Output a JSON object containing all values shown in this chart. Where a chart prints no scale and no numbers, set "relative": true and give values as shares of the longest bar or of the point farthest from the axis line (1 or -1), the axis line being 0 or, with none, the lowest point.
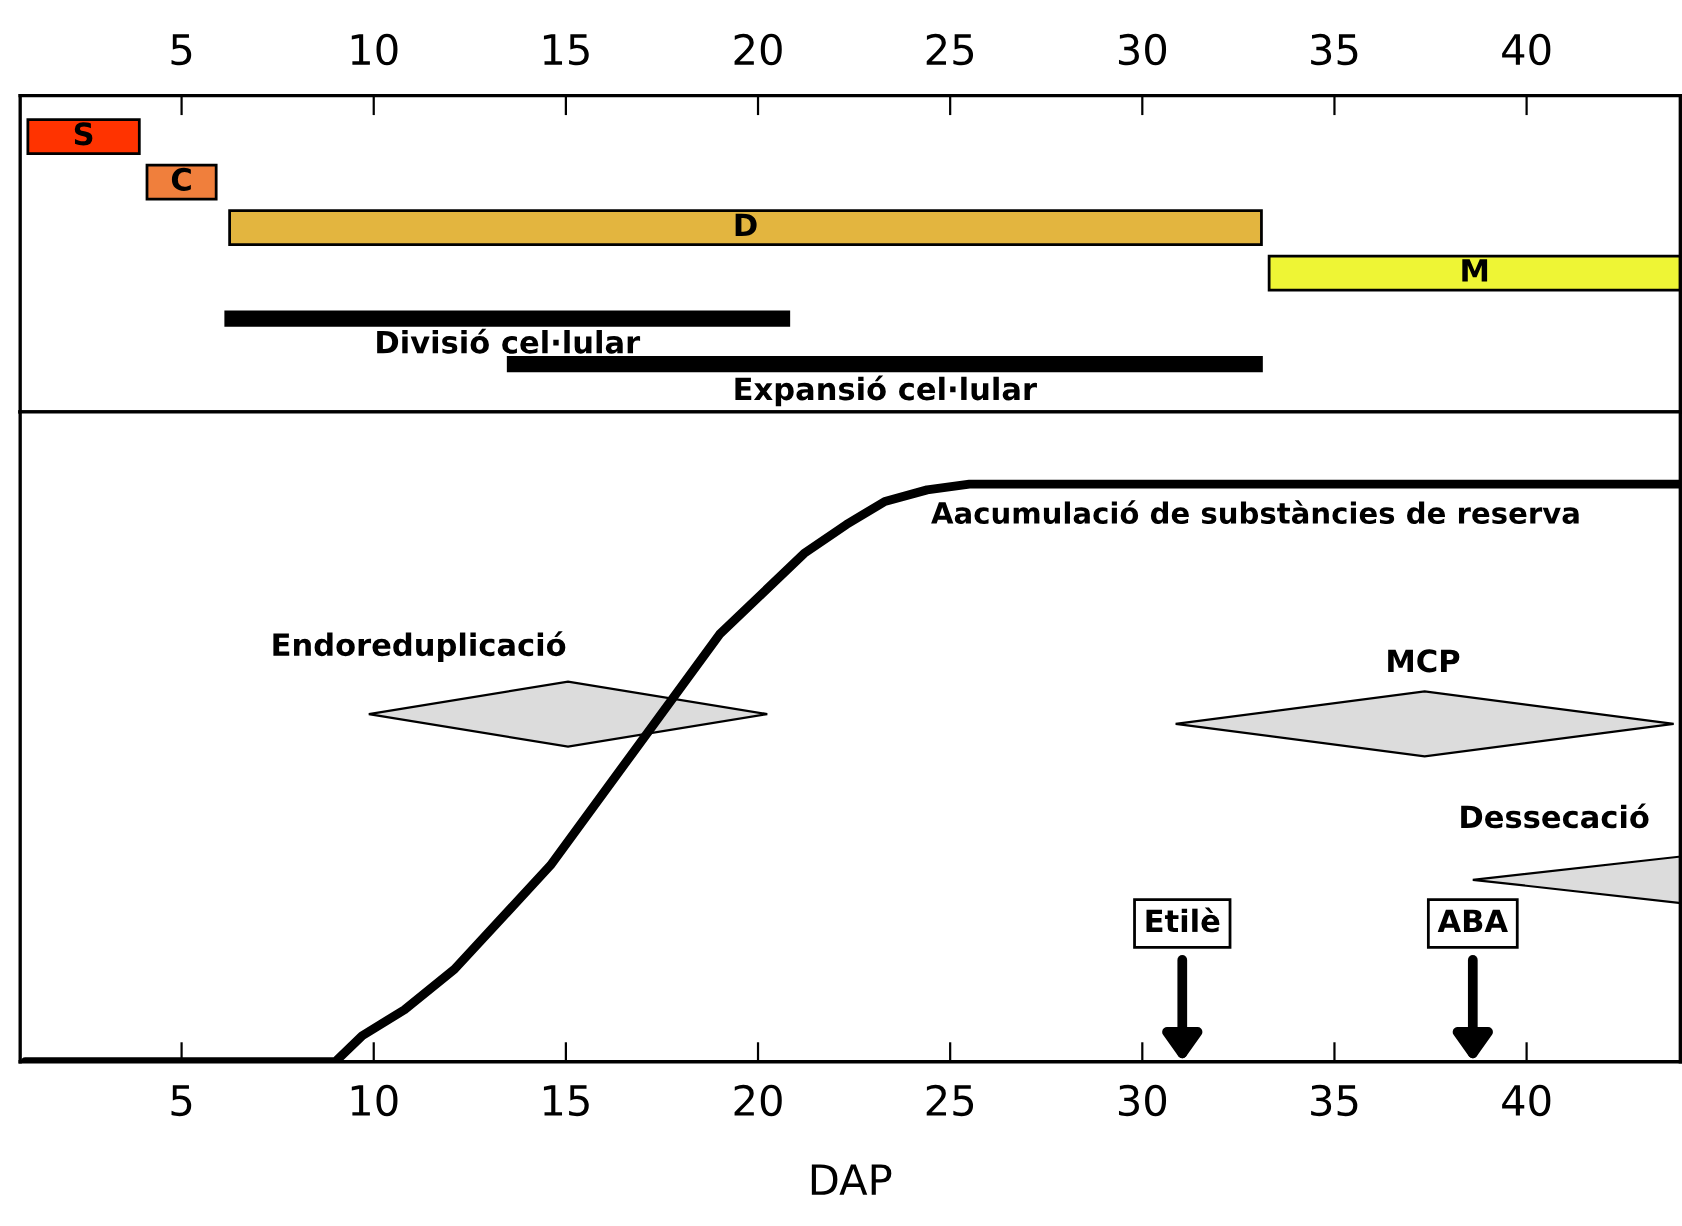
{
  "chart_data": [
    {
      "type": "bar",
      "orientation": "horizontal",
      "categories": [
        null,
        null,
        null,
        null,
        null,
        null
      ],
      "base": [
        1,
        4.1,
        6.25,
        33.3,
        6.15,
        13.5
      ],
      "values": [
        2.9,
        1.8,
        26.85,
        10.7,
        14.65,
        19.6
      ],
      "colors": [
        "#ff3300",
        "#f07f3c",
        "#e3b53f",
        "#eef535",
        "#000000",
        "#000000"
      ],
      "value_labels": [
        "S",
        "C",
        "D",
        "M",
        "Divisió cel·lular",
        "Expansió cel·lular"
      ],
      "xlim": [
        0.8,
        44
      ],
      "xticks": [
        5,
        10,
        15,
        20,
        25,
        30,
        35,
        40
      ],
      "tick_labels": "x"
    },
    {
      "type": "line",
      "relative": true,
      "xlabel": "DAP",
      "series": [
        {
          "name": "Aacumulació de substàncies de reserva",
          "color": "#000000",
          "x": [
            0.93,
            9.0,
            9.7,
            10.8,
            12.1,
            14.6,
            16.8,
            19.0,
            21.2,
            22.3,
            23.3,
            24.4,
            25.5,
            27,
            44
          ],
          "values": [
            0,
            0,
            0.045,
            0.09,
            0.16,
            0.34,
            0.54,
            0.74,
            0.88,
            0.93,
            0.97,
            0.99,
            1.0,
            1.0,
            1.0
          ]
        }
      ],
      "annotations": [
        "Endoreduplicació",
        "MCP",
        "Dessecació",
        "Etilè",
        "ABA"
      ],
      "xlim": [
        0.8,
        44
      ],
      "xticks": [
        5,
        10,
        15,
        20,
        25,
        30,
        35,
        40
      ],
      "tick_labels": "x"
    }
  ]
}
